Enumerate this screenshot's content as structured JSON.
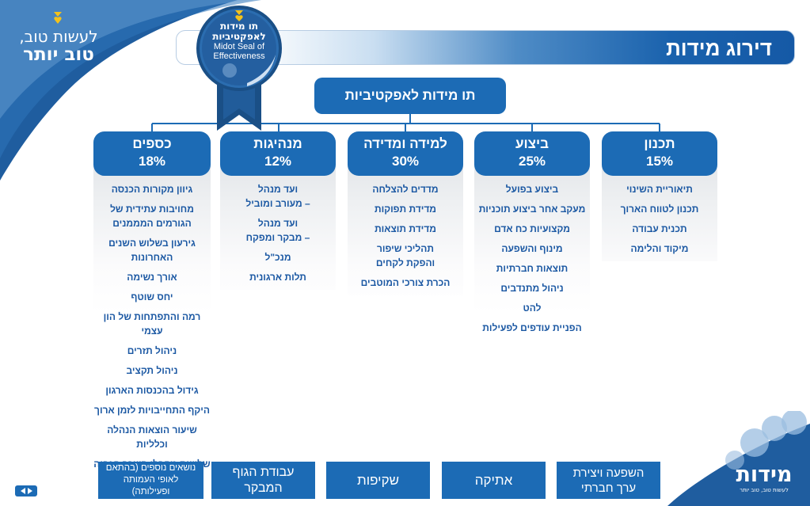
{
  "brand": {
    "slogan_line1": "לעשות טוב,",
    "slogan_line2": "טוב יותר",
    "bottom_logo": "מידות",
    "bottom_logo_tagline": "לעשות טוב, טוב יותר"
  },
  "header": {
    "title": "דירוג מידות"
  },
  "seal": {
    "line1": "תו מידות",
    "line2": "לאפקטיביות",
    "line3": "Midot Seal of",
    "line4": "Effectiveness"
  },
  "root": {
    "label": "תו מידות לאפקטיביות"
  },
  "categories": [
    {
      "name": "תכנון",
      "weight": "15%",
      "items": [
        "תיאוריית השינוי",
        "תכנון לטווח הארוך",
        "תכנית עבודה",
        "מיקוד והלימה"
      ]
    },
    {
      "name": "ביצוע",
      "weight": "25%",
      "items": [
        "ביצוע בפועל",
        "מעקב אחר ביצוע תוכניות",
        "מקצועיות כח אדם",
        "מינוף והשפעה",
        "תוצאות חברתיות",
        "ניהול מתנדבים",
        "להט",
        "הפניית עודפים לפעילות"
      ]
    },
    {
      "name": "למידה ומדידה",
      "weight": "30%",
      "items": [
        "מדדים להצלחה",
        "מדידת תפוקות",
        "מדידת תוצאות",
        "תהליכי שיפור\nוהפקת לקחים",
        "הכרת צורכי המוטבים"
      ]
    },
    {
      "name": "מנהיגות",
      "weight": "12%",
      "items": [
        "ועד מנהל\n– מעורב ומוביל",
        "ועד מנהל\n– מבקר ומפקח",
        "מנכ\"ל",
        "תלות ארגונית"
      ]
    },
    {
      "name": "כספים",
      "weight": "18%",
      "items": [
        "גיוון מקורות הכנסה",
        "מחויבות עתידית של\nהגורמים המממנים",
        "גירעון בשלוש השנים\nהאחרונות",
        "אורך נשימה",
        "יחס שוטף",
        "רמה והתפתחות של הון עצמי",
        "ניהול תזרים",
        "ניהול תקציב",
        "גידול בהכנסות הארגון",
        "היקף התחייבויות לזמן ארוך",
        "שיעור הוצאות הנהלה וכלליות",
        "שלושת מקבלי השכר הגבוה"
      ]
    }
  ],
  "bottom_topics": [
    "השפעה ויצירת\nערך חברתי",
    "אתיקה",
    "שקיפות",
    "עבודת הגוף\nהמבקר",
    "נושאים נוספים (בהתאם\nלאופי העמותה\nופעילותה)"
  ],
  "colors": {
    "primary": "#1c6bb5",
    "item_text": "#1b58a3",
    "swoosh_dark": "#1e5a9e",
    "swoosh_light": "#3a86c8"
  },
  "icons": {
    "logo_heart": "heart-shield-icon",
    "nav": "prev-next-arrows-icon"
  }
}
